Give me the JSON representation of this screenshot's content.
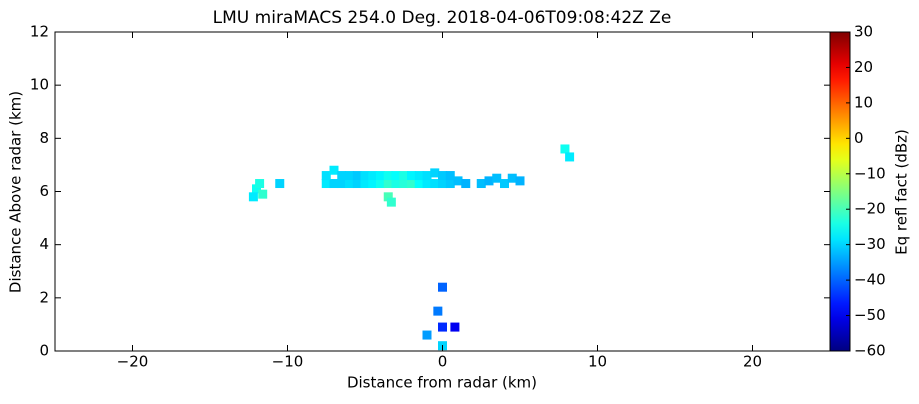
{
  "chart_data": {
    "type": "heatmap",
    "title": "LMU miraMACS 254.0 Deg. 2018-04-06T09:08:42Z  Ze",
    "x_label": "Distance from radar (km)",
    "y_label": "Distance Above radar  (km)",
    "colorbar_label": "Eq refl fact (dBz)",
    "xlim": [
      -25,
      25
    ],
    "ylim": [
      0,
      12
    ],
    "xticks": [
      {
        "value": -20,
        "label": "−20"
      },
      {
        "value": -10,
        "label": "−10"
      },
      0,
      10,
      20
    ],
    "yticks": [
      0,
      2,
      4,
      6,
      8,
      10,
      12
    ],
    "clim": [
      -60,
      30
    ],
    "cticks": [
      {
        "value": -60,
        "label": "−60"
      },
      {
        "value": -50,
        "label": "−50"
      },
      {
        "value": -40,
        "label": "−40"
      },
      {
        "value": -30,
        "label": "−30"
      },
      {
        "value": -20,
        "label": "−20"
      },
      {
        "value": -10,
        "label": "−10"
      },
      0,
      10,
      20,
      30
    ],
    "x": [
      -12,
      -11.6,
      -12.2,
      -11.8,
      -10.5,
      -7.5,
      -7,
      -6.5,
      -6,
      -5.5,
      -5,
      -4.5,
      -4,
      -3.5,
      -3,
      -2.5,
      -2,
      -1.5,
      -1,
      -0.5,
      0,
      0.5,
      1,
      1.5,
      -7.5,
      -7,
      -6.5,
      -6,
      -5.5,
      -5,
      -4.5,
      -4,
      -3.5,
      -3,
      -2.5,
      -2,
      -1.5,
      -1,
      -0.5,
      0,
      0.5,
      -3.5,
      -3.3,
      2.5,
      3,
      3.5,
      4,
      4.5,
      5,
      7.9,
      8.2,
      -0.3,
      0,
      0.8,
      -1,
      0,
      0
    ],
    "y": [
      6.1,
      5.9,
      5.8,
      6.3,
      6.3,
      6.3,
      6.3,
      6.3,
      6.3,
      6.3,
      6.3,
      6.3,
      6.3,
      6.3,
      6.3,
      6.3,
      6.3,
      6.3,
      6.3,
      6.3,
      6.3,
      6.3,
      6.4,
      6.3,
      6.6,
      6.8,
      6.6,
      6.6,
      6.6,
      6.6,
      6.6,
      6.6,
      6.6,
      6.6,
      6.6,
      6.6,
      6.6,
      6.6,
      6.7,
      6.6,
      6.6,
      5.8,
      5.6,
      6.3,
      6.4,
      6.5,
      6.3,
      6.5,
      6.4,
      7.6,
      7.3,
      1.5,
      0.9,
      0.9,
      0.6,
      0.2,
      2.4
    ],
    "values": [
      -25,
      -22,
      -28,
      -24,
      -30,
      -28,
      -30,
      -30,
      -29,
      -30,
      -28,
      -27,
      -25,
      -22,
      -24,
      -23,
      -22,
      -26,
      -28,
      -29,
      -30,
      -31,
      -32,
      -33,
      -29,
      -28,
      -30,
      -30,
      -31,
      -29,
      -28,
      -27,
      -25,
      -26,
      -24,
      -27,
      -28,
      -29,
      -30,
      -31,
      -32,
      -20,
      -22,
      -32,
      -33,
      -32,
      -31,
      -32,
      -33,
      -25,
      -28,
      -38,
      -45,
      -50,
      -35,
      -30,
      -40
    ]
  }
}
